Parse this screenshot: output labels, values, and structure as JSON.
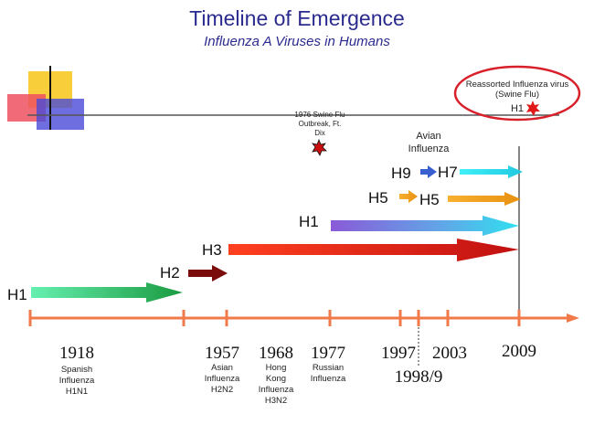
{
  "title": "Timeline of Emergence",
  "subtitle": "Influenza A Viruses in Humans",
  "callouts": {
    "swine1976": [
      "1976 Swine Flu",
      "Outbreak, Ft.",
      "Dix"
    ],
    "reassorted": [
      "Reassorted Influenza virus",
      "(Swine Flu)"
    ],
    "reassorted_subtype": "H1",
    "avian": [
      "Avian",
      "Influenza"
    ]
  },
  "strain_labels": {
    "h1_1918": "H1",
    "h2": "H2",
    "h3": "H3",
    "h1_1977": "H1",
    "h5_1997": "H5",
    "h5_2003": "H5",
    "h9": "H9",
    "h7": "H7"
  },
  "years": [
    {
      "year": "1918",
      "desc": [
        "Spanish",
        "Influenza",
        "H1N1"
      ]
    },
    {
      "year": "1957",
      "desc": [
        "Asian",
        "Influenza",
        "H2N2"
      ]
    },
    {
      "year": "1968",
      "desc": [
        "Hong",
        "Kong",
        "Influenza",
        "H3N2"
      ]
    },
    {
      "year": "1977",
      "desc": [
        "Russian",
        "Influenza"
      ]
    },
    {
      "year": "1997",
      "desc": []
    },
    {
      "year": "1998/9",
      "desc": []
    },
    {
      "year": "2003",
      "desc": []
    },
    {
      "year": "2009",
      "desc": []
    }
  ],
  "colors": {
    "timeline": "#f07a4a",
    "h1_1918": "#2db87a",
    "h2": "#7a0c0c",
    "h3": "#d6261c",
    "h1_1977": "#9a78e0",
    "h5": "#f0a020",
    "h9": "#3a5fd0",
    "h7": "#30e0e8",
    "oval": "#d8202a"
  }
}
